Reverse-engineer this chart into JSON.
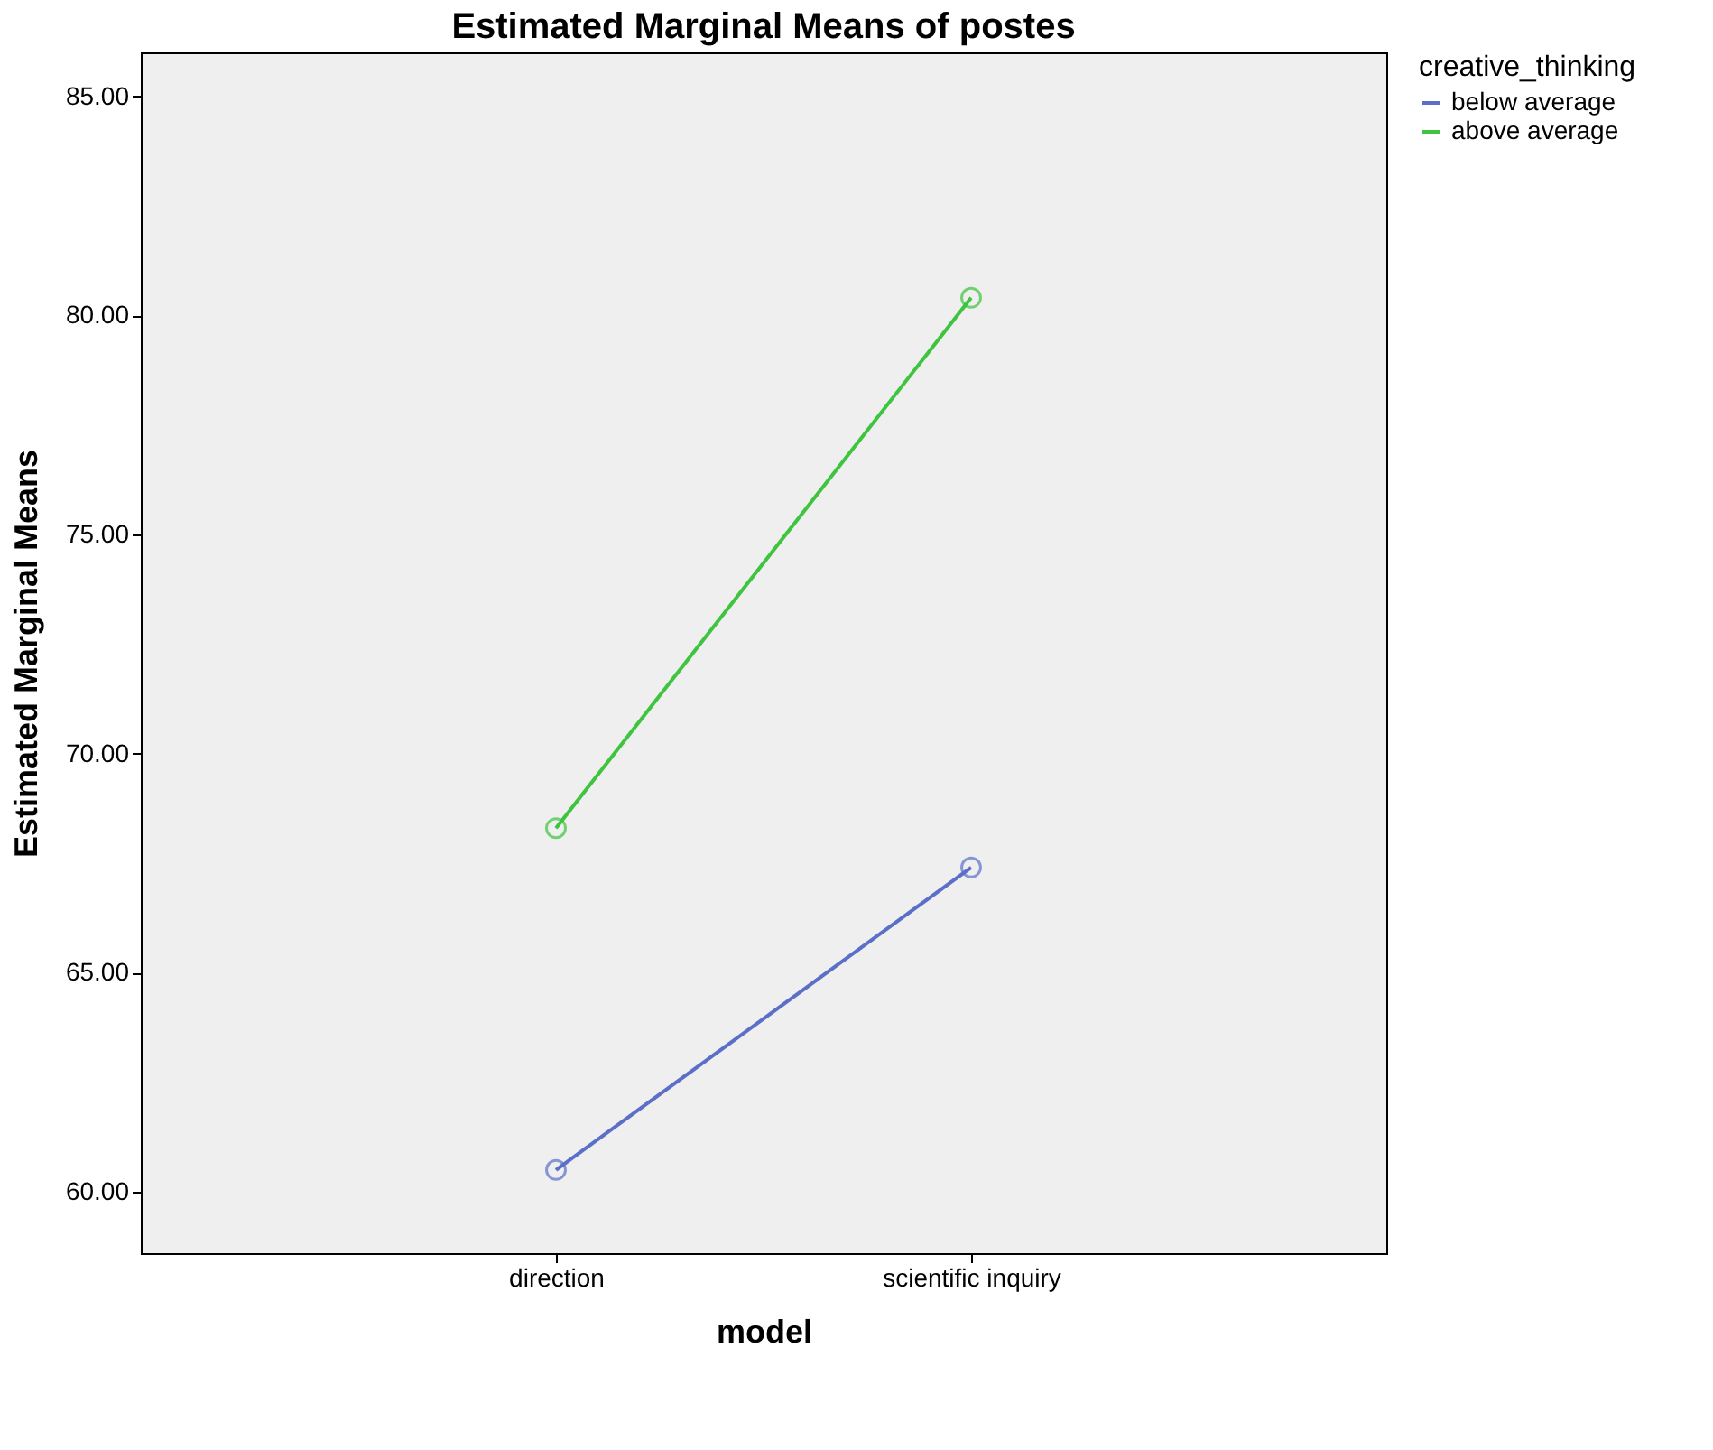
{
  "chart_data": {
    "type": "line",
    "title": "Estimated Marginal Means of postes",
    "xlabel": "model",
    "ylabel": "Estimated Marginal Means",
    "legend_title": "creative_thinking",
    "categories": [
      "direction",
      "scientific inquiry"
    ],
    "series": [
      {
        "name": "below average",
        "color": "#5b6fc8",
        "values": [
          60.5,
          67.4
        ]
      },
      {
        "name": "above average",
        "color": "#3ec43e",
        "values": [
          68.3,
          80.4
        ]
      }
    ],
    "ylim": [
      58.6,
      86.0
    ],
    "yticks": [
      {
        "value": 60,
        "label": "60.00"
      },
      {
        "value": 65,
        "label": "65.00"
      },
      {
        "value": 70,
        "label": "70.00"
      },
      {
        "value": 75,
        "label": "75.00"
      },
      {
        "value": 80,
        "label": "80.00"
      },
      {
        "value": 85,
        "label": "85.00"
      }
    ],
    "grid": false,
    "legend": "top right",
    "marker": "circle",
    "line_style": "solid"
  }
}
